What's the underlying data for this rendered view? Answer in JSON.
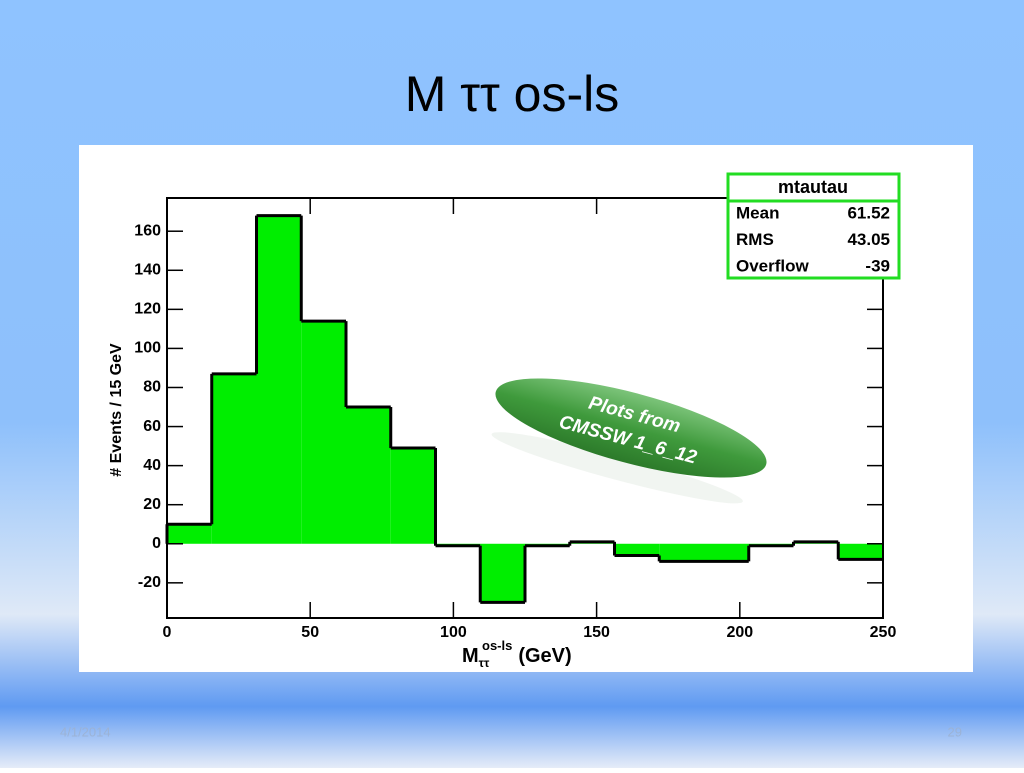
{
  "slide": {
    "title": "M ττ os-ls",
    "date": "4/1/2014",
    "page": "29"
  },
  "chart_data": {
    "type": "histogram",
    "bins": [
      0,
      15.625,
      31.25,
      46.875,
      62.5,
      78.125,
      93.75,
      109.375,
      125,
      140.625,
      156.25,
      171.875,
      187.5,
      203.125,
      218.75,
      234.375,
      250
    ],
    "values": [
      10,
      87,
      168,
      114,
      70,
      49,
      -1,
      -30,
      -1,
      1,
      -6,
      -9,
      -9,
      -1,
      1,
      -8
    ],
    "color": "#00ee00",
    "edge_color": "#000000",
    "xlim": [
      0,
      250
    ],
    "xticks": [
      0,
      50,
      100,
      150,
      200,
      250
    ],
    "ylim": [
      -38,
      177
    ],
    "yticks": [
      -20,
      0,
      20,
      40,
      60,
      80,
      100,
      120,
      140,
      160
    ],
    "y_label": "# Events / 15 GeV",
    "x_label": {
      "main": "M",
      "sub": "ττ",
      "sup": "os-ls",
      "unit": "(GeV)"
    },
    "stats": {
      "title": "mtautau",
      "rows": [
        {
          "name": "Mean",
          "value": 61.52
        },
        {
          "name": "RMS",
          "value": 43.05
        },
        {
          "name": "Overflow",
          "value": -39
        }
      ]
    },
    "badge": [
      "Plots from",
      "CMSSW 1_6_12"
    ]
  }
}
